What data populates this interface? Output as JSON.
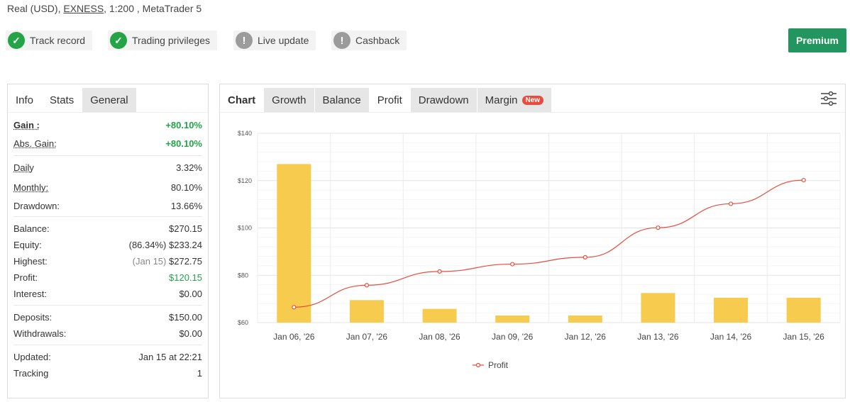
{
  "header": {
    "account_prefix": "Real (USD), ",
    "broker": "EXNESS",
    "account_suffix": ", 1:200 , MetaTrader 5"
  },
  "badges": [
    {
      "label": "Track record",
      "status": "ok"
    },
    {
      "label": "Trading privileges",
      "status": "ok"
    },
    {
      "label": "Live update",
      "status": "warn"
    },
    {
      "label": "Cashback",
      "status": "warn"
    }
  ],
  "premium_label": "Premium",
  "left_tabs": [
    "Info",
    "Stats",
    "General"
  ],
  "stats": {
    "gain_label": "Gain :",
    "gain": "+80.10%",
    "abs_gain_label": "Abs. Gain:",
    "abs_gain": "+80.10%",
    "daily_label": "Daily",
    "daily": "3.32%",
    "monthly_label": "Monthly:",
    "monthly": "80.10%",
    "drawdown_label": "Drawdown:",
    "drawdown": "13.66%",
    "balance_label": "Balance:",
    "balance": "$270.15",
    "equity_label": "Equity:",
    "equity_pct": "(86.34%)",
    "equity": "$233.24",
    "highest_label": "Highest:",
    "highest_date": "(Jan 15)",
    "highest": "$272.75",
    "profit_label": "Profit:",
    "profit": "$120.15",
    "interest_label": "Interest:",
    "interest": "$0.00",
    "deposits_label": "Deposits:",
    "deposits": "$150.00",
    "withdrawals_label": "Withdrawals:",
    "withdrawals": "$0.00",
    "updated_label": "Updated:",
    "updated": "Jan 15 at 22:21",
    "tracking_label": "Tracking",
    "tracking": "1"
  },
  "chart_tabs": {
    "chart": "Chart",
    "growth": "Growth",
    "balance": "Balance",
    "profit": "Profit",
    "drawdown": "Drawdown",
    "margin": "Margin",
    "new": "New"
  },
  "chart_data": {
    "type": "bar",
    "categories": [
      "Jan 06, '26",
      "Jan 07, '26",
      "Jan 08, '26",
      "Jan 09, '26",
      "Jan 12, '26",
      "Jan 13, '26",
      "Jan 14, '26",
      "Jan 15, '26"
    ],
    "ylim": [
      60,
      140
    ],
    "yticks": [
      "$60",
      "$80",
      "$100",
      "$120",
      "$140"
    ],
    "ytick_values": [
      60,
      80,
      100,
      120,
      140
    ],
    "series": [
      {
        "type": "bar",
        "values": [
          127,
          69.5,
          65.8,
          63,
          63,
          72.5,
          70.5,
          70.5
        ],
        "color": "#f7cb4d"
      },
      {
        "type": "line",
        "name": "Profit",
        "values": [
          66.5,
          75.8,
          81.6,
          84.7,
          87.6,
          100.1,
          110.2,
          120.2
        ],
        "color": "#e74c3c"
      }
    ],
    "legend": "bottom-center"
  }
}
